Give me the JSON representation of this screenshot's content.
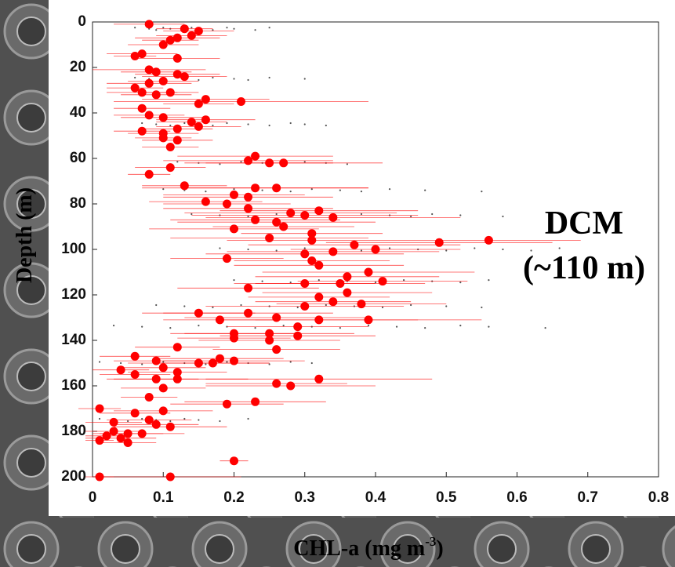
{
  "chart_data": {
    "type": "scatter",
    "ylabel": "Depth (m)",
    "xlabel": [
      "CHL-a (mg m",
      "-3",
      ")"
    ],
    "annotation": [
      "DCM",
      "(~110 m)"
    ],
    "x": [
      0.08,
      0.13,
      0.15,
      0.12,
      0.11,
      0.1,
      0.14,
      0.06,
      0.07,
      0.12,
      0.08,
      0.09,
      0.12,
      0.13,
      0.1,
      0.08,
      0.06,
      0.07,
      0.09,
      0.11,
      0.16,
      0.15,
      0.21,
      0.07,
      0.08,
      0.1,
      0.14,
      0.16,
      0.15,
      0.12,
      0.07,
      0.1,
      0.1,
      0.12,
      0.11,
      0.23,
      0.22,
      0.25,
      0.27,
      0.11,
      0.08,
      0.13,
      0.23,
      0.26,
      0.2,
      0.22,
      0.16,
      0.19,
      0.22,
      0.28,
      0.32,
      0.3,
      0.34,
      0.23,
      0.26,
      0.27,
      0.2,
      0.31,
      0.25,
      0.31,
      0.49,
      0.56,
      0.37,
      0.4,
      0.34,
      0.3,
      0.31,
      0.19,
      0.32,
      0.39,
      0.36,
      0.41,
      0.35,
      0.3,
      0.22,
      0.36,
      0.32,
      0.34,
      0.38,
      0.3,
      0.15,
      0.22,
      0.26,
      0.18,
      0.32,
      0.39,
      0.29,
      0.2,
      0.25,
      0.29,
      0.2,
      0.25,
      0.12,
      0.26,
      0.06,
      0.09,
      0.15,
      0.17,
      0.18,
      0.2,
      0.04,
      0.1,
      0.12,
      0.06,
      0.09,
      0.12,
      0.32,
      0.26,
      0.28,
      0.1,
      0.08,
      0.19,
      0.23,
      0.01,
      0.06,
      0.1,
      0.03,
      0.08,
      0.09,
      0.11,
      0.03,
      0.05,
      0.07,
      0.02,
      0.01,
      0.04,
      0.05,
      0.2,
      0.01,
      0.11
    ],
    "y": [
      1,
      3,
      4,
      7,
      8,
      10,
      6,
      15,
      14,
      16,
      21,
      22,
      23,
      24,
      26,
      27,
      29,
      31,
      32,
      31,
      34,
      36,
      35,
      38,
      41,
      42,
      44,
      43,
      46,
      47,
      48,
      49,
      51,
      52,
      55,
      59,
      61,
      62,
      62,
      64,
      67,
      72,
      73,
      73,
      76,
      77,
      79,
      80,
      82,
      84,
      83,
      85,
      86,
      87,
      88,
      90,
      91,
      93,
      95,
      96,
      97,
      96,
      98,
      100,
      101,
      102,
      105,
      104,
      107,
      110,
      112,
      114,
      115,
      115,
      117,
      119,
      121,
      123,
      124,
      125,
      128,
      128,
      130,
      131,
      131,
      131,
      134,
      137,
      137,
      138,
      139,
      140,
      143,
      144,
      147,
      149,
      150,
      150,
      148,
      149,
      153,
      152,
      154,
      155,
      157,
      157,
      157,
      159,
      160,
      161,
      165,
      168,
      167,
      170,
      172,
      171,
      176,
      175,
      177,
      178,
      180,
      181,
      181,
      182,
      184,
      183,
      185,
      193,
      200,
      200
    ],
    "xerr": [
      0.05,
      0.04,
      0.05,
      0.06,
      0.04,
      0.05,
      0.05,
      0.03,
      0.05,
      0.06,
      0.08,
      0.05,
      0.06,
      0.06,
      0.05,
      0.06,
      0.04,
      0.05,
      0.05,
      0.04,
      0.09,
      0.05,
      0.18,
      0.04,
      0.05,
      0.06,
      0.05,
      0.07,
      0.06,
      0.05,
      0.04,
      0.05,
      0.04,
      0.05,
      0.04,
      0.11,
      0.12,
      0.09,
      0.14,
      0.05,
      0.03,
      0.06,
      0.16,
      0.13,
      0.1,
      0.12,
      0.08,
      0.09,
      0.12,
      0.15,
      0.14,
      0.16,
      0.18,
      0.12,
      0.14,
      0.1,
      0.12,
      0.1,
      0.14,
      0.12,
      0.16,
      0.13,
      0.15,
      0.12,
      0.15,
      0.14,
      0.11,
      0.08,
      0.12,
      0.15,
      0.13,
      0.12,
      0.12,
      0.1,
      0.1,
      0.12,
      0.1,
      0.11,
      0.12,
      0.14,
      0.08,
      0.12,
      0.13,
      0.08,
      0.14,
      0.16,
      0.1,
      0.09,
      0.12,
      0.11,
      0.08,
      0.1,
      0.06,
      0.09,
      0.05,
      0.06,
      0.1,
      0.08,
      0.09,
      0.1,
      0.04,
      0.06,
      0.07,
      0.05,
      0.06,
      0.1,
      0.16,
      0.1,
      0.12,
      0.06,
      0.04,
      0.08,
      0.1,
      0.03,
      0.05,
      0.07,
      0.04,
      0.06,
      0.06,
      0.08,
      0.04,
      0.05,
      0.06,
      0.03,
      0.02,
      0.05,
      0.04,
      0.02,
      0.02,
      0.1
    ],
    "color": "#ff0000",
    "raw_color": "#555555",
    "raw": [
      {
        "depth": 3,
        "values": [
          0.06,
          0.08,
          0.09,
          0.1,
          0.11,
          0.13,
          0.14,
          0.15,
          0.17,
          0.19,
          0.2,
          0.23,
          0.25
        ]
      },
      {
        "depth": 25,
        "values": [
          0.06,
          0.08,
          0.1,
          0.12,
          0.13,
          0.15,
          0.17,
          0.2,
          0.22,
          0.25,
          0.3
        ]
      },
      {
        "depth": 45,
        "values": [
          0.07,
          0.09,
          0.11,
          0.13,
          0.15,
          0.17,
          0.19,
          0.22,
          0.25,
          0.28,
          0.3,
          0.33
        ]
      },
      {
        "depth": 62,
        "values": [
          0.12,
          0.15,
          0.18,
          0.21,
          0.24,
          0.27,
          0.3,
          0.33,
          0.36
        ]
      },
      {
        "depth": 74,
        "values": [
          0.1,
          0.13,
          0.16,
          0.2,
          0.24,
          0.28,
          0.31,
          0.35,
          0.38,
          0.42,
          0.47,
          0.55
        ]
      },
      {
        "depth": 85,
        "values": [
          0.14,
          0.18,
          0.22,
          0.26,
          0.3,
          0.34,
          0.38,
          0.42,
          0.45,
          0.48,
          0.52,
          0.58
        ]
      },
      {
        "depth": 100,
        "values": [
          0.18,
          0.22,
          0.26,
          0.3,
          0.34,
          0.38,
          0.42,
          0.46,
          0.5,
          0.54,
          0.58,
          0.62,
          0.66
        ]
      },
      {
        "depth": 114,
        "values": [
          0.2,
          0.24,
          0.28,
          0.32,
          0.36,
          0.4,
          0.44,
          0.48,
          0.52,
          0.56
        ]
      },
      {
        "depth": 125,
        "values": [
          0.09,
          0.13,
          0.17,
          0.21,
          0.25,
          0.29,
          0.33,
          0.37,
          0.41,
          0.45,
          0.5,
          0.55
        ]
      },
      {
        "depth": 134,
        "values": [
          0.03,
          0.07,
          0.11,
          0.15,
          0.19,
          0.23,
          0.27,
          0.31,
          0.35,
          0.39,
          0.43,
          0.47,
          0.52,
          0.56,
          0.64
        ]
      },
      {
        "depth": 150,
        "values": [
          0.01,
          0.04,
          0.07,
          0.1,
          0.13,
          0.16,
          0.19,
          0.22,
          0.25,
          0.28,
          0.31
        ]
      },
      {
        "depth": 175,
        "values": [
          0.01,
          0.03,
          0.05,
          0.07,
          0.09,
          0.11,
          0.13,
          0.15,
          0.18,
          0.22
        ]
      }
    ],
    "xlim": [
      0,
      0.8
    ],
    "ylim": [
      0,
      200
    ],
    "y_inverted": true,
    "xticks": [
      0,
      0.1,
      0.2,
      0.3,
      0.4,
      0.5,
      0.6,
      0.7,
      0.8
    ],
    "yticks": [
      0,
      20,
      40,
      60,
      80,
      100,
      120,
      140,
      160,
      180,
      200
    ]
  }
}
